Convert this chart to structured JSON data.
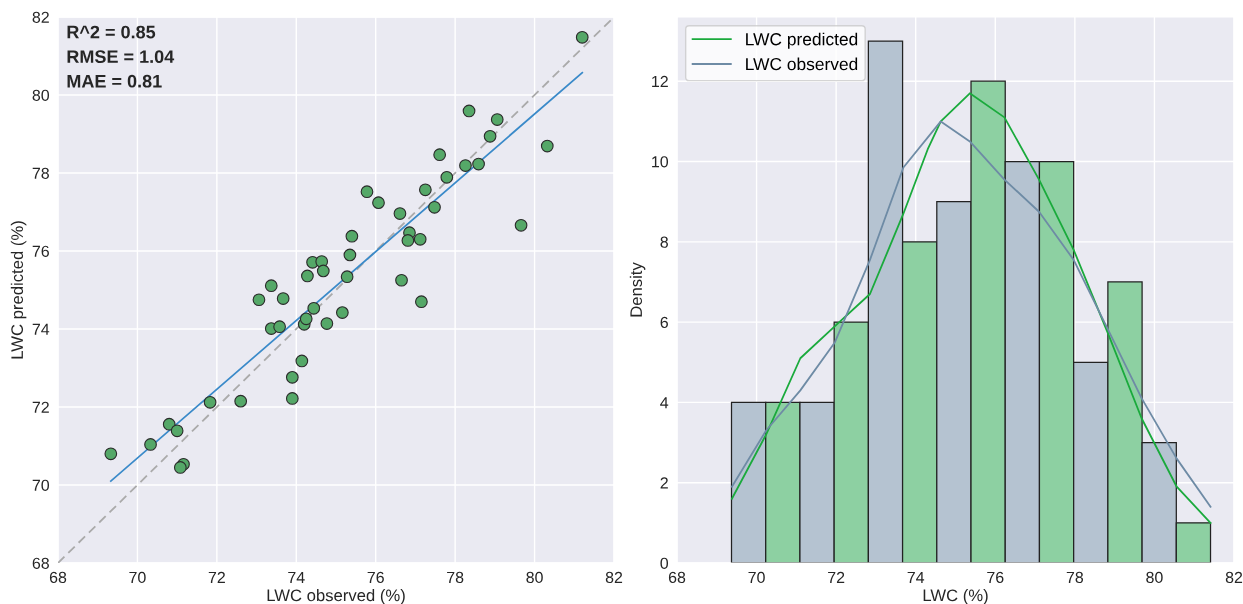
{
  "chart_data": [
    {
      "type": "scatter",
      "xlabel": "LWC observed (%)",
      "ylabel": "LWC predicted (%)",
      "xlim": [
        68,
        82
      ],
      "ylim": [
        68,
        82
      ],
      "xticks": [
        68,
        70,
        72,
        74,
        76,
        78,
        80,
        82
      ],
      "yticks": [
        68,
        70,
        72,
        74,
        76,
        78,
        80,
        82
      ],
      "grid": true,
      "legend": false,
      "annotations": [
        "R^2 = 0.85",
        "RMSE = 1.04",
        "MAE = 0.81"
      ],
      "series": [
        {
          "type": "line",
          "color": "#aaaaaa",
          "line_style": "dashed",
          "x": [
            68,
            82
          ],
          "values": [
            68,
            82
          ]
        },
        {
          "type": "line",
          "color": "#3a8ac9",
          "line_style": "solid",
          "x": [
            69.33,
            81.2
          ],
          "values": [
            70.1,
            80.57
          ]
        },
        {
          "type": "scatter",
          "marker": "circle",
          "color": "#55a868",
          "x": [
            69.33,
            70.33,
            70.8,
            71.0,
            71.16,
            71.08,
            71.83,
            72.6,
            73.9,
            73.9,
            74.14,
            73.06,
            73.37,
            73.67,
            73.37,
            73.58,
            74.2,
            74.25,
            74.44,
            74.77,
            75.16,
            74.41,
            74.64,
            74.28,
            74.68,
            81.2,
            78.35,
            79.06,
            78.88,
            80.32,
            77.61,
            78.26,
            78.59,
            77.79,
            75.78,
            76.07,
            77.25,
            76.61,
            77.48,
            75.4,
            76.85,
            76.81,
            77.12,
            75.35,
            75.28,
            76.65,
            79.66,
            77.15
          ],
          "values": [
            70.8,
            71.04,
            71.56,
            71.39,
            70.53,
            70.45,
            72.12,
            72.15,
            72.22,
            72.76,
            73.18,
            74.75,
            75.11,
            74.78,
            74.01,
            74.06,
            74.12,
            74.26,
            74.53,
            74.14,
            74.42,
            75.71,
            75.73,
            75.36,
            75.49,
            81.48,
            79.59,
            79.37,
            78.94,
            78.69,
            78.47,
            78.19,
            78.23,
            77.89,
            77.52,
            77.24,
            77.57,
            76.96,
            77.12,
            76.38,
            76.47,
            76.27,
            76.3,
            75.9,
            75.34,
            75.25,
            76.66,
            74.7
          ]
        }
      ]
    },
    {
      "type": "histogram",
      "xlabel": "LWC (%)",
      "ylabel": "Density",
      "xlim": [
        68,
        82
      ],
      "ylim": [
        0,
        13.6
      ],
      "xticks": [
        68,
        70,
        72,
        74,
        76,
        78,
        80,
        82
      ],
      "yticks": [
        0,
        2,
        4,
        6,
        8,
        10,
        12
      ],
      "grid": true,
      "legend": "top left",
      "bins": [
        69.37,
        70.23,
        71.09,
        71.95,
        72.81,
        73.67,
        74.53,
        75.39,
        76.25,
        77.11,
        77.97,
        78.83,
        79.69,
        80.55,
        81.41
      ],
      "values": [
        4,
        4,
        4,
        6,
        13,
        8,
        9,
        12,
        10,
        10,
        5,
        7,
        3,
        1
      ],
      "colors": [
        "#b5c3d1",
        "#8dd0a2",
        "#b5c3d1",
        "#8dd0a2",
        "#b5c3d1",
        "#8dd0a2",
        "#b5c3d1",
        "#8dd0a2",
        "#b5c3d1",
        "#8dd0a2",
        "#b5c3d1",
        "#8dd0a2",
        "#b5c3d1",
        "#8dd0a2"
      ],
      "series": [
        {
          "type": "line",
          "name": "LWC predicted",
          "color": "#1aaa3c",
          "x": [
            69.38,
            70.24,
            71.1,
            71.97,
            72.85,
            73.69,
            74.3,
            74.63,
            75.36,
            76.23,
            77.1,
            77.97,
            78.84,
            79.68,
            80.56,
            81.41
          ],
          "values": [
            1.6,
            3.2,
            5.1,
            5.9,
            6.7,
            8.7,
            10.3,
            11.0,
            11.7,
            11.1,
            9.55,
            7.8,
            5.7,
            3.6,
            1.9,
            1.0
          ]
        },
        {
          "type": "line",
          "name": "LWC observed",
          "color": "#6e8ba5",
          "x": [
            69.38,
            70.24,
            71.1,
            71.97,
            72.85,
            73.69,
            74.63,
            75.36,
            76.23,
            77.1,
            77.97,
            78.84,
            79.68,
            80.56,
            81.41
          ],
          "values": [
            1.9,
            3.3,
            4.3,
            5.5,
            7.55,
            9.85,
            11.0,
            10.5,
            9.55,
            8.75,
            7.55,
            5.8,
            4.1,
            2.6,
            1.4
          ]
        }
      ]
    }
  ]
}
